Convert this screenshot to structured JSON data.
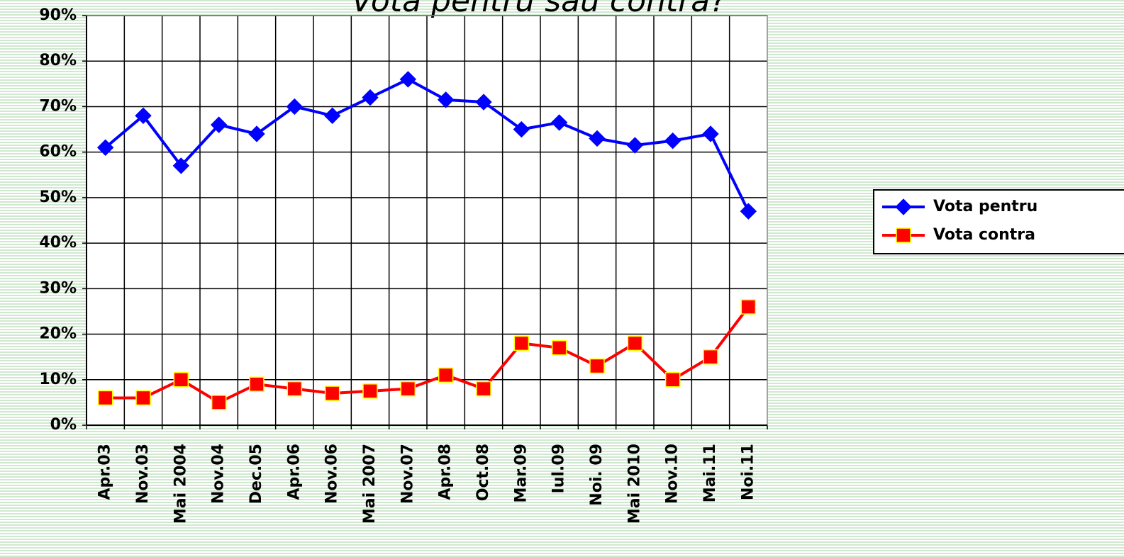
{
  "chart_data": {
    "type": "line",
    "title": "Vota pentru sau contra?",
    "categories": [
      "Apr.03",
      "Nov.03",
      "Mai 2004",
      "Nov.04",
      "Dec.05",
      "Apr.06",
      "Nov.06",
      "Mai 2007",
      "Nov.07",
      "Apr.08",
      "Oct.08",
      "Mar.09",
      "Iul.09",
      "Noi. 09",
      "Mai 2010",
      "Nov.10",
      "Mai.11",
      "Noi.11"
    ],
    "series": [
      {
        "name": "Vota pentru",
        "color": "#0000ff",
        "marker": "diamond",
        "values": [
          61,
          68,
          57,
          66,
          64,
          70,
          68,
          72,
          76,
          71.5,
          71,
          65,
          66.5,
          63,
          61.5,
          62.5,
          64,
          47
        ]
      },
      {
        "name": "Vota contra",
        "color": "#ff0000",
        "marker": "square",
        "values": [
          6,
          6,
          10,
          5,
          9,
          8,
          7,
          7.5,
          8,
          11,
          8,
          18,
          17,
          13,
          18,
          10,
          15,
          26
        ]
      }
    ],
    "ylim": [
      0,
      90
    ],
    "yticks": [
      {
        "value": 0,
        "label": "0%"
      },
      {
        "value": 10,
        "label": "10%"
      },
      {
        "value": 20,
        "label": "20%"
      },
      {
        "value": 30,
        "label": "30%"
      },
      {
        "value": 40,
        "label": "40%"
      },
      {
        "value": 50,
        "label": "50%"
      },
      {
        "value": 60,
        "label": "60%"
      },
      {
        "value": 70,
        "label": "70%"
      },
      {
        "value": 80,
        "label": "80%"
      },
      {
        "value": 90,
        "label": "90%"
      }
    ],
    "grid": true,
    "legend": "right"
  }
}
